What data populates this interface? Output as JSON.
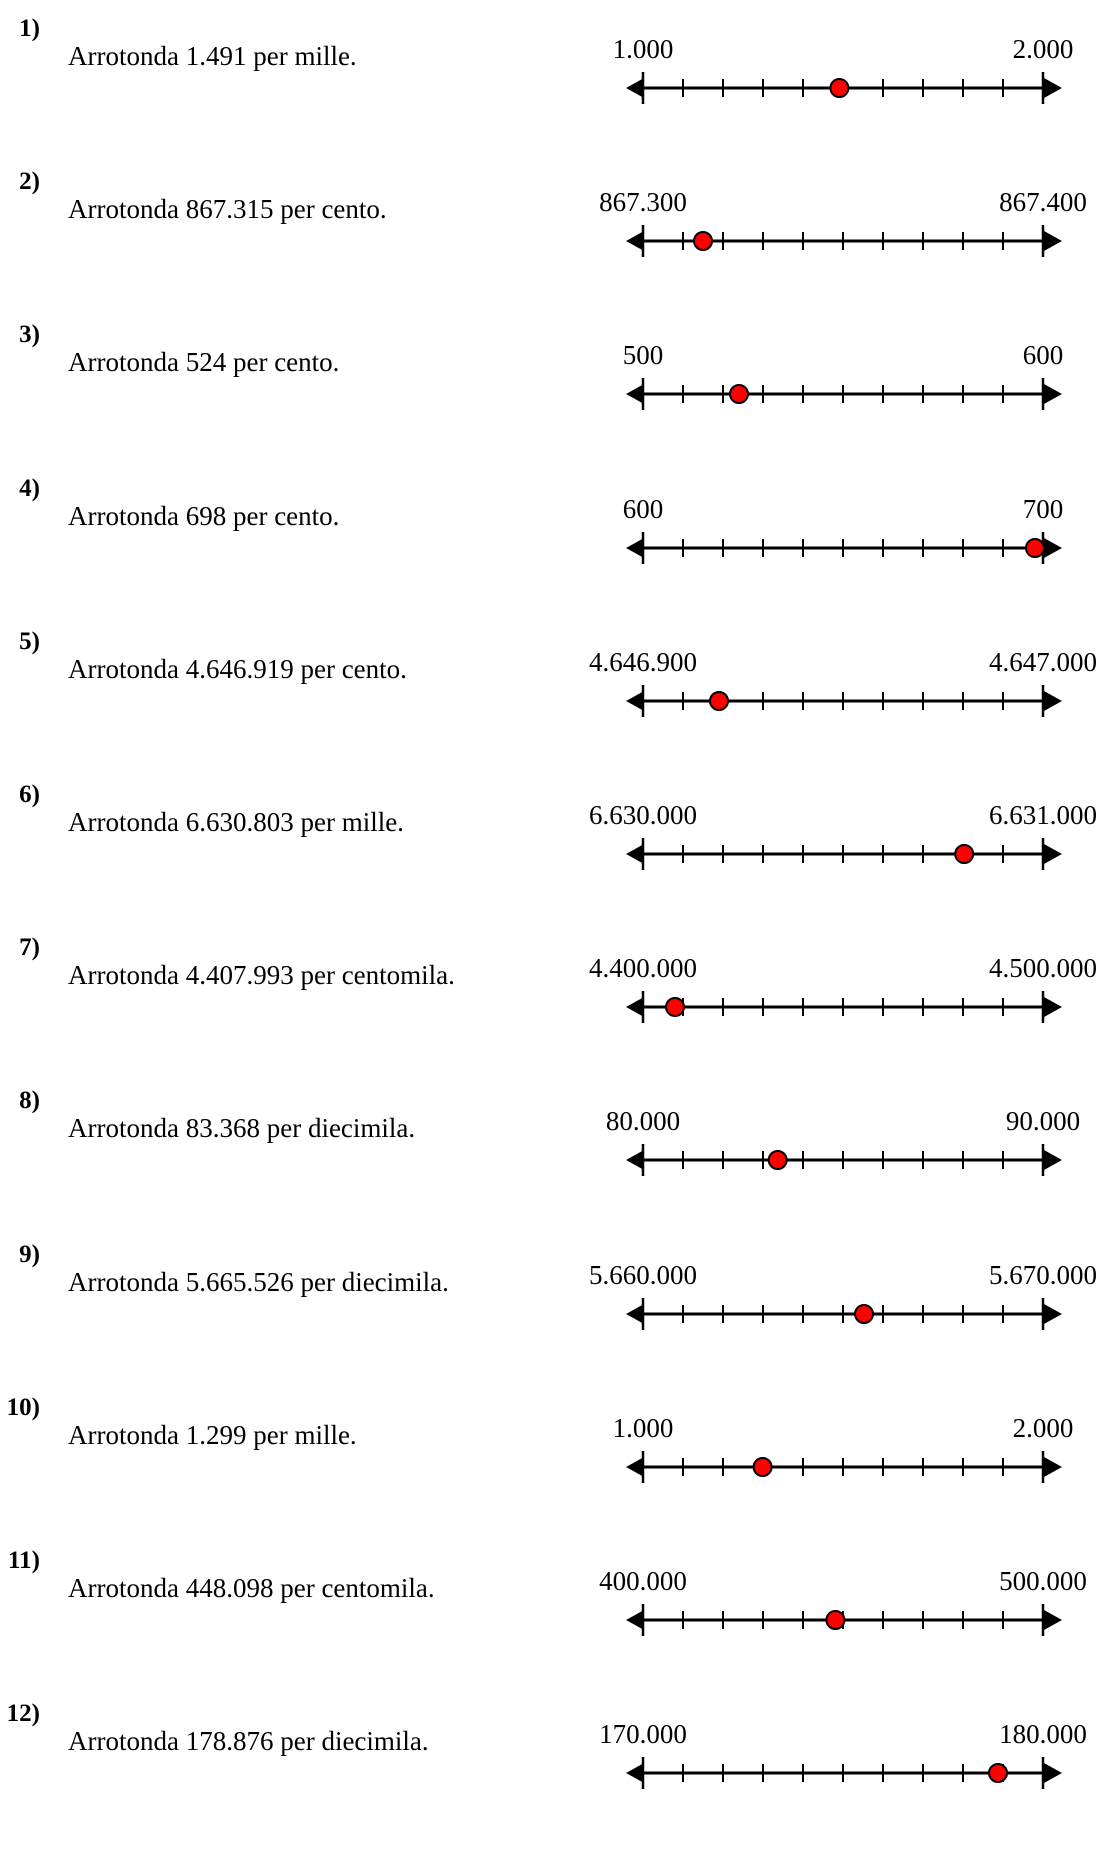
{
  "colors": {
    "line": "#000000",
    "point_fill": "#ff0000",
    "point_stroke": "#000000"
  },
  "problems": [
    {
      "number": "1)",
      "question": "Arrotonda 1.491 per mille.",
      "left_label": "1.000",
      "right_label": "2.000",
      "point_value": 0.491
    },
    {
      "number": "2)",
      "question": "Arrotonda 867.315 per cento.",
      "left_label": "867.300",
      "right_label": "867.400",
      "point_value": 0.15
    },
    {
      "number": "3)",
      "question": "Arrotonda 524 per cento.",
      "left_label": "500",
      "right_label": "600",
      "point_value": 0.24
    },
    {
      "number": "4)",
      "question": "Arrotonda 698 per cento.",
      "left_label": "600",
      "right_label": "700",
      "point_value": 0.98
    },
    {
      "number": "5)",
      "question": "Arrotonda 4.646.919 per cento.",
      "left_label": "4.646.900",
      "right_label": "4.647.000",
      "point_value": 0.19
    },
    {
      "number": "6)",
      "question": "Arrotonda 6.630.803 per mille.",
      "left_label": "6.630.000",
      "right_label": "6.631.000",
      "point_value": 0.803
    },
    {
      "number": "7)",
      "question": "Arrotonda 4.407.993 per centomila.",
      "left_label": "4.400.000",
      "right_label": "4.500.000",
      "point_value": 0.07993
    },
    {
      "number": "8)",
      "question": "Arrotonda 83.368 per diecimila.",
      "left_label": "80.000",
      "right_label": "90.000",
      "point_value": 0.3368
    },
    {
      "number": "9)",
      "question": "Arrotonda 5.665.526 per diecimila.",
      "left_label": "5.660.000",
      "right_label": "5.670.000",
      "point_value": 0.5526
    },
    {
      "number": "10)",
      "question": "Arrotonda 1.299 per mille.",
      "left_label": "1.000",
      "right_label": "2.000",
      "point_value": 0.299
    },
    {
      "number": "11)",
      "question": "Arrotonda 448.098 per centomila.",
      "left_label": "400.000",
      "right_label": "500.000",
      "point_value": 0.48098
    },
    {
      "number": "12)",
      "question": "Arrotonda 178.876 per diecimila.",
      "left_label": "170.000",
      "right_label": "180.000",
      "point_value": 0.8876
    }
  ]
}
